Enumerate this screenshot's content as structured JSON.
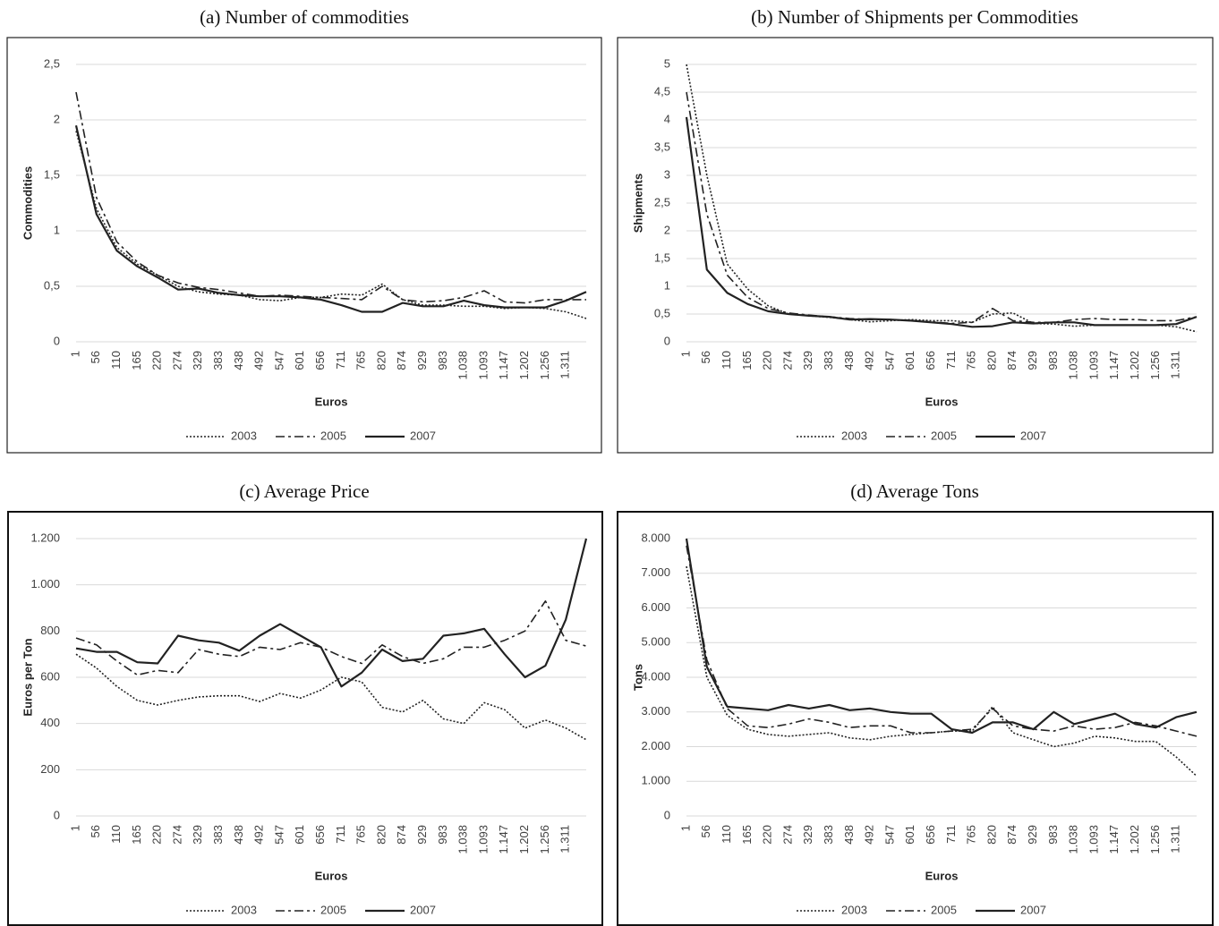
{
  "chart_data": [
    {
      "type": "line",
      "title": "(a) Number of commodities",
      "xlabel": "Euros",
      "ylabel": "Commodities",
      "categories": [
        "1",
        "56",
        "110",
        "165",
        "220",
        "274",
        "329",
        "383",
        "438",
        "492",
        "547",
        "601",
        "656",
        "711",
        "765",
        "820",
        "874",
        "929",
        "983",
        "1.038",
        "1.093",
        "1.147",
        "1.202",
        "1.256",
        "1.311",
        null
      ],
      "ylim": [
        0,
        2.5
      ],
      "yticks": [
        0,
        {
          "value": 0.5,
          "label": "0,5"
        },
        1,
        {
          "value": 1.5,
          "label": "1,5"
        },
        2,
        {
          "value": 2.5,
          "label": "2,5"
        }
      ],
      "grid": true,
      "legend": "bottom",
      "series": [
        {
          "name": "2003",
          "color": "#222222",
          "style": "dotted",
          "values": [
            1.9,
            1.2,
            0.85,
            0.7,
            0.6,
            0.5,
            0.45,
            0.43,
            0.42,
            0.38,
            0.37,
            0.4,
            0.4,
            0.43,
            0.42,
            0.52,
            0.38,
            0.33,
            0.33,
            0.32,
            0.32,
            0.3,
            0.31,
            0.3,
            0.27,
            0.21
          ]
        },
        {
          "name": "2005",
          "color": "#222222",
          "style": "dashdot",
          "values": [
            2.25,
            1.3,
            0.9,
            0.72,
            0.6,
            0.53,
            0.49,
            0.47,
            0.44,
            0.41,
            0.42,
            0.41,
            0.4,
            0.39,
            0.38,
            0.5,
            0.38,
            0.36,
            0.37,
            0.4,
            0.46,
            0.36,
            0.35,
            0.38,
            0.38,
            0.38
          ]
        },
        {
          "name": "2007",
          "color": "#222222",
          "style": "solid",
          "values": [
            1.95,
            1.15,
            0.82,
            0.68,
            0.58,
            0.47,
            0.48,
            0.44,
            0.42,
            0.41,
            0.41,
            0.4,
            0.38,
            0.33,
            0.27,
            0.27,
            0.35,
            0.32,
            0.32,
            0.37,
            0.33,
            0.31,
            0.31,
            0.31,
            0.37,
            0.45
          ]
        }
      ]
    },
    {
      "type": "line",
      "title": "(b) Number of Shipments per Commodities",
      "xlabel": "Euros",
      "ylabel": "Shipments",
      "categories": [
        "1",
        "56",
        "110",
        "165",
        "220",
        "274",
        "329",
        "383",
        "438",
        "492",
        "547",
        "601",
        "656",
        "711",
        "765",
        "820",
        "874",
        "929",
        "983",
        "1.038",
        "1.093",
        "1.147",
        "1.202",
        "1.256",
        "1.311",
        null
      ],
      "ylim": [
        0,
        5
      ],
      "yticks": [
        0,
        {
          "value": 0.5,
          "label": "0,5"
        },
        1,
        {
          "value": 1.5,
          "label": "1,5"
        },
        2,
        {
          "value": 2.5,
          "label": "2,5"
        },
        3,
        {
          "value": 3.5,
          "label": "3,5"
        },
        4,
        {
          "value": 4.5,
          "label": "4,5"
        },
        5
      ],
      "grid": true,
      "legend": "bottom",
      "series": [
        {
          "name": "2003",
          "color": "#222222",
          "style": "dotted",
          "values": [
            5,
            3,
            1.4,
            0.95,
            0.65,
            0.5,
            0.47,
            0.44,
            0.4,
            0.36,
            0.38,
            0.4,
            0.38,
            0.38,
            0.35,
            0.5,
            0.52,
            0.33,
            0.32,
            0.28,
            0.3,
            0.3,
            0.3,
            0.3,
            0.27,
            0.18
          ]
        },
        {
          "name": "2005",
          "color": "#222222",
          "style": "dashdot",
          "values": [
            4.5,
            2.3,
            1.2,
            0.8,
            0.6,
            0.52,
            0.48,
            0.45,
            0.42,
            0.4,
            0.4,
            0.38,
            0.36,
            0.33,
            0.35,
            0.6,
            0.38,
            0.35,
            0.35,
            0.4,
            0.42,
            0.4,
            0.4,
            0.38,
            0.38,
            0.45
          ]
        },
        {
          "name": "2007",
          "color": "#222222",
          "style": "solid",
          "values": [
            4.05,
            1.3,
            0.88,
            0.68,
            0.55,
            0.5,
            0.47,
            0.45,
            0.4,
            0.41,
            0.4,
            0.38,
            0.35,
            0.32,
            0.27,
            0.28,
            0.35,
            0.33,
            0.35,
            0.35,
            0.3,
            0.3,
            0.3,
            0.3,
            0.32,
            0.45
          ]
        }
      ]
    },
    {
      "type": "line",
      "title": "(c) Average Price",
      "xlabel": "Euros",
      "ylabel": "Euros per Ton",
      "categories": [
        "1",
        "56",
        "110",
        "165",
        "220",
        "274",
        "329",
        "383",
        "438",
        "492",
        "547",
        "601",
        "656",
        "711",
        "765",
        "820",
        "874",
        "929",
        "983",
        "1.038",
        "1.093",
        "1.147",
        "1.202",
        "1.256",
        "1.311",
        null
      ],
      "ylim": [
        0,
        1200
      ],
      "yticks": [
        0,
        200,
        400,
        600,
        800,
        {
          "value": 1000,
          "label": "1.000"
        },
        {
          "value": 1200,
          "label": "1.200"
        }
      ],
      "grid": true,
      "legend": "bottom",
      "series": [
        {
          "name": "2003",
          "color": "#222222",
          "style": "dotted",
          "values": [
            700,
            640,
            560,
            500,
            480,
            500,
            515,
            520,
            520,
            495,
            530,
            510,
            545,
            600,
            580,
            470,
            450,
            500,
            420,
            400,
            490,
            460,
            380,
            415,
            380,
            330
          ]
        },
        {
          "name": "2005",
          "color": "#222222",
          "style": "dashdot",
          "values": [
            770,
            740,
            670,
            610,
            630,
            620,
            720,
            700,
            690,
            730,
            720,
            750,
            730,
            690,
            660,
            740,
            690,
            660,
            680,
            730,
            730,
            760,
            800,
            930,
            760,
            735
          ]
        },
        {
          "name": "2007",
          "color": "#222222",
          "style": "solid",
          "values": [
            725,
            710,
            710,
            665,
            660,
            780,
            760,
            750,
            715,
            780,
            830,
            780,
            730,
            560,
            620,
            720,
            670,
            680,
            780,
            790,
            810,
            700,
            600,
            650,
            850,
            1200
          ]
        }
      ]
    },
    {
      "type": "line",
      "title": "(d) Average Tons",
      "xlabel": "Euros",
      "ylabel": "Tons",
      "categories": [
        "1",
        "56",
        "110",
        "165",
        "220",
        "274",
        "329",
        "383",
        "438",
        "492",
        "547",
        "601",
        "656",
        "711",
        "765",
        "820",
        "874",
        "929",
        "983",
        "1.038",
        "1.093",
        "1.147",
        "1.202",
        "1.256",
        "1.311",
        null
      ],
      "ylim": [
        0,
        8000
      ],
      "yticks": [
        0,
        {
          "value": 1000,
          "label": "1.000"
        },
        {
          "value": 2000,
          "label": "2.000"
        },
        {
          "value": 3000,
          "label": "3.000"
        },
        {
          "value": 4000,
          "label": "4.000"
        },
        {
          "value": 5000,
          "label": "5.000"
        },
        {
          "value": 6000,
          "label": "6.000"
        },
        {
          "value": 7000,
          "label": "7.000"
        },
        {
          "value": 8000,
          "label": "8.000"
        }
      ],
      "grid": true,
      "legend": "bottom",
      "series": [
        {
          "name": "2003",
          "color": "#222222",
          "style": "dotted",
          "values": [
            7200,
            4000,
            2900,
            2500,
            2350,
            2300,
            2350,
            2400,
            2250,
            2200,
            2300,
            2350,
            2400,
            2450,
            2450,
            3150,
            2400,
            2200,
            2000,
            2100,
            2300,
            2250,
            2150,
            2150,
            1700,
            1150
          ]
        },
        {
          "name": "2005",
          "color": "#222222",
          "style": "dashdot",
          "values": [
            7800,
            4500,
            3100,
            2600,
            2550,
            2650,
            2800,
            2700,
            2550,
            2600,
            2600,
            2400,
            2400,
            2450,
            2500,
            3100,
            2600,
            2500,
            2450,
            2600,
            2500,
            2550,
            2700,
            2600,
            2450,
            2300
          ]
        },
        {
          "name": "2007",
          "color": "#222222",
          "style": "solid",
          "values": [
            8000,
            4300,
            3150,
            3100,
            3050,
            3200,
            3100,
            3200,
            3050,
            3100,
            3000,
            2950,
            2950,
            2500,
            2400,
            2700,
            2700,
            2500,
            3000,
            2650,
            2800,
            2950,
            2650,
            2550,
            2850,
            3000
          ]
        }
      ]
    }
  ]
}
